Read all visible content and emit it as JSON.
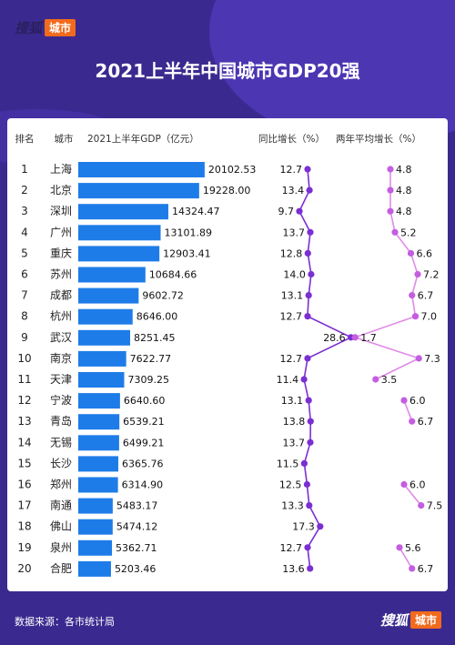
{
  "brand": {
    "name": "搜狐",
    "tag": "城市"
  },
  "title": "2021上半年中国城市GDP20强",
  "source": {
    "label": "数据来源：",
    "value": "各市统计局"
  },
  "colors": {
    "background": "#3a2a8f",
    "bar": "#1e7ce8",
    "growth_line": "#7b2fd3",
    "growth_point": "#7b2fd3",
    "avg_line": "#e08ae8",
    "avg_point": "#c45ee0",
    "brand_tag": "#f26b1d"
  },
  "chart_data": {
    "type": "table",
    "columns": [
      "排名",
      "城市",
      "2021上半年GDP（亿元）",
      "同比增长（%）",
      "两年平均增长（%）"
    ],
    "rows": [
      {
        "rank": "1",
        "city": "上海",
        "gdp": 20102.53,
        "gdp_label": "20102.53",
        "yoy": 12.7,
        "yoy_label": "12.7",
        "avg2y": 4.8,
        "avg2y_label": "4.8"
      },
      {
        "rank": "2",
        "city": "北京",
        "gdp": 19228.0,
        "gdp_label": "19228.00",
        "yoy": 13.4,
        "yoy_label": "13.4",
        "avg2y": 4.8,
        "avg2y_label": "4.8"
      },
      {
        "rank": "3",
        "city": "深圳",
        "gdp": 14324.47,
        "gdp_label": "14324.47",
        "yoy": 9.7,
        "yoy_label": "9.7",
        "avg2y": 4.8,
        "avg2y_label": "4.8"
      },
      {
        "rank": "4",
        "city": "广州",
        "gdp": 13101.89,
        "gdp_label": "13101.89",
        "yoy": 13.7,
        "yoy_label": "13.7",
        "avg2y": 5.2,
        "avg2y_label": "5.2"
      },
      {
        "rank": "5",
        "city": "重庆",
        "gdp": 12903.41,
        "gdp_label": "12903.41",
        "yoy": 12.8,
        "yoy_label": "12.8",
        "avg2y": 6.6,
        "avg2y_label": "6.6"
      },
      {
        "rank": "6",
        "city": "苏州",
        "gdp": 10684.66,
        "gdp_label": "10684.66",
        "yoy": 14.0,
        "yoy_label": "14.0",
        "avg2y": 7.2,
        "avg2y_label": "7.2"
      },
      {
        "rank": "7",
        "city": "成都",
        "gdp": 9602.72,
        "gdp_label": "9602.72",
        "yoy": 13.1,
        "yoy_label": "13.1",
        "avg2y": 6.7,
        "avg2y_label": "6.7"
      },
      {
        "rank": "8",
        "city": "杭州",
        "gdp": 8646.0,
        "gdp_label": "8646.00",
        "yoy": 12.7,
        "yoy_label": "12.7",
        "avg2y": 7.0,
        "avg2y_label": "7.0"
      },
      {
        "rank": "9",
        "city": "武汉",
        "gdp": 8251.45,
        "gdp_label": "8251.45",
        "yoy": 28.6,
        "yoy_label": "28.6",
        "avg2y": 1.7,
        "avg2y_label": "1.7"
      },
      {
        "rank": "10",
        "city": "南京",
        "gdp": 7622.77,
        "gdp_label": "7622.77",
        "yoy": 12.7,
        "yoy_label": "12.7",
        "avg2y": 7.3,
        "avg2y_label": "7.3"
      },
      {
        "rank": "11",
        "city": "天津",
        "gdp": 7309.25,
        "gdp_label": "7309.25",
        "yoy": 11.4,
        "yoy_label": "11.4",
        "avg2y": 3.5,
        "avg2y_label": "3.5"
      },
      {
        "rank": "12",
        "city": "宁波",
        "gdp": 6640.6,
        "gdp_label": "6640.60",
        "yoy": 13.1,
        "yoy_label": "13.1",
        "avg2y": 6.0,
        "avg2y_label": "6.0"
      },
      {
        "rank": "13",
        "city": "青岛",
        "gdp": 6539.21,
        "gdp_label": "6539.21",
        "yoy": 13.8,
        "yoy_label": "13.8",
        "avg2y": 6.7,
        "avg2y_label": "6.7"
      },
      {
        "rank": "14",
        "city": "无锡",
        "gdp": 6499.21,
        "gdp_label": "6499.21",
        "yoy": 13.7,
        "yoy_label": "13.7",
        "avg2y": null,
        "avg2y_label": ""
      },
      {
        "rank": "15",
        "city": "长沙",
        "gdp": 6365.76,
        "gdp_label": "6365.76",
        "yoy": 11.5,
        "yoy_label": "11.5",
        "avg2y": null,
        "avg2y_label": ""
      },
      {
        "rank": "16",
        "city": "郑州",
        "gdp": 6314.9,
        "gdp_label": "6314.90",
        "yoy": 12.5,
        "yoy_label": "12.5",
        "avg2y": 6.0,
        "avg2y_label": "6.0"
      },
      {
        "rank": "17",
        "city": "南通",
        "gdp": 5483.17,
        "gdp_label": "5483.17",
        "yoy": 13.3,
        "yoy_label": "13.3",
        "avg2y": 7.5,
        "avg2y_label": "7.5"
      },
      {
        "rank": "18",
        "city": "佛山",
        "gdp": 5474.12,
        "gdp_label": "5474.12",
        "yoy": 17.3,
        "yoy_label": "17.3",
        "avg2y": null,
        "avg2y_label": ""
      },
      {
        "rank": "19",
        "city": "泉州",
        "gdp": 5362.71,
        "gdp_label": "5362.71",
        "yoy": 12.7,
        "yoy_label": "12.7",
        "avg2y": 5.6,
        "avg2y_label": "5.6"
      },
      {
        "rank": "20",
        "city": "合肥",
        "gdp": 5203.46,
        "gdp_label": "5203.46",
        "yoy": 13.6,
        "yoy_label": "13.6",
        "avg2y": 6.7,
        "avg2y_label": "6.7"
      }
    ],
    "avg2y_segments": [
      [
        0,
        7
      ],
      [
        7,
        10
      ],
      [
        11,
        12
      ],
      [
        15,
        16
      ],
      [
        18,
        19
      ]
    ]
  }
}
